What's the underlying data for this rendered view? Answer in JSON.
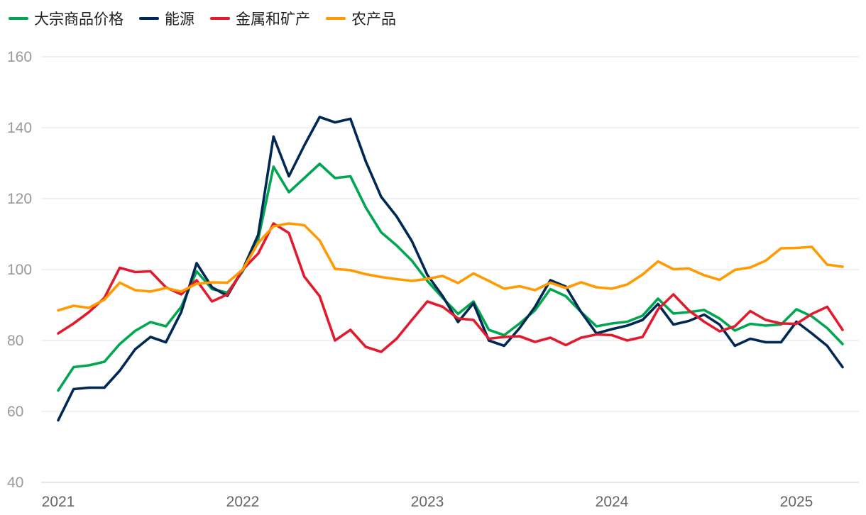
{
  "chart_data": {
    "type": "line",
    "title": "",
    "xlabel": "",
    "ylabel": "",
    "ylim": [
      40,
      160
    ],
    "yticks": [
      40,
      60,
      80,
      100,
      120,
      140,
      160
    ],
    "xlim": [
      2021.0,
      2025.5
    ],
    "xticks": [
      {
        "value": 2021,
        "label": "2021"
      },
      {
        "value": 2022,
        "label": "2022"
      },
      {
        "value": 2023,
        "label": "2023"
      },
      {
        "value": 2024,
        "label": "2024"
      },
      {
        "value": 2025,
        "label": "2025"
      }
    ],
    "grid": "horizontal",
    "legend_position": "top-left",
    "x_start": 2021.0,
    "x_step_months": 1,
    "series": [
      {
        "name": "大宗商品价格",
        "color": "#00a650",
        "values": [
          65.9,
          72.5,
          73.0,
          74.0,
          79.0,
          82.7,
          85.2,
          84.0,
          89.5,
          99.5,
          94.5,
          93.5,
          99.5,
          108.5,
          129.0,
          121.8,
          125.8,
          129.8,
          125.8,
          126.3,
          117.5,
          110.5,
          106.8,
          102.5,
          96.8,
          92.0,
          87.5,
          91.0,
          83.0,
          81.5,
          84.8,
          88.5,
          94.5,
          92.5,
          88.0,
          84.0,
          84.8,
          85.3,
          87.0,
          91.8,
          87.6,
          88.0,
          88.6,
          86.2,
          82.8,
          84.7,
          84.2,
          84.5,
          88.8,
          86.8,
          83.5,
          79.0
        ]
      },
      {
        "name": "能源",
        "color": "#002855",
        "values": [
          57.5,
          66.3,
          66.7,
          66.7,
          71.5,
          77.5,
          81.0,
          79.5,
          88.0,
          101.8,
          95.0,
          92.6,
          100.0,
          109.8,
          137.5,
          126.3,
          135.0,
          143.0,
          141.5,
          142.5,
          130.5,
          120.5,
          115.0,
          108.0,
          98.5,
          92.5,
          85.2,
          90.5,
          80.0,
          78.5,
          83.5,
          89.5,
          97.0,
          95.2,
          88.0,
          82.0,
          83.2,
          84.2,
          85.8,
          90.3,
          84.5,
          85.5,
          87.3,
          84.5,
          78.5,
          80.5,
          79.5,
          79.5,
          85.3,
          82.0,
          78.5,
          72.5
        ]
      },
      {
        "name": "金属和矿产",
        "color": "#e11b2d",
        "values": [
          82.0,
          84.8,
          88.0,
          92.0,
          100.5,
          99.3,
          99.5,
          95.0,
          93.0,
          97.0,
          91.0,
          93.0,
          100.0,
          104.5,
          113.0,
          110.3,
          98.0,
          92.5,
          80.0,
          83.0,
          78.2,
          76.8,
          80.5,
          85.8,
          91.0,
          89.5,
          86.2,
          85.8,
          80.5,
          81.0,
          81.2,
          79.6,
          80.8,
          78.7,
          80.8,
          81.7,
          81.5,
          80.0,
          81.0,
          88.8,
          93.0,
          88.5,
          85.3,
          82.6,
          84.0,
          88.3,
          85.8,
          84.8,
          84.7,
          87.5,
          89.5,
          83.0
        ]
      },
      {
        "name": "农产品",
        "color": "#ff9a00",
        "values": [
          88.5,
          89.8,
          89.2,
          91.5,
          96.3,
          94.2,
          93.8,
          94.8,
          93.8,
          96.0,
          96.4,
          96.3,
          100.0,
          107.5,
          112.2,
          113.0,
          112.5,
          108.2,
          100.2,
          99.8,
          98.7,
          97.9,
          97.3,
          96.8,
          97.4,
          98.2,
          96.2,
          98.9,
          96.8,
          94.6,
          95.3,
          94.2,
          96.3,
          94.8,
          96.4,
          95.0,
          94.6,
          95.8,
          98.6,
          102.3,
          100.1,
          100.3,
          98.4,
          97.1,
          99.9,
          100.6,
          102.5,
          106.0,
          106.1,
          106.4,
          101.4,
          100.8
        ]
      }
    ]
  }
}
